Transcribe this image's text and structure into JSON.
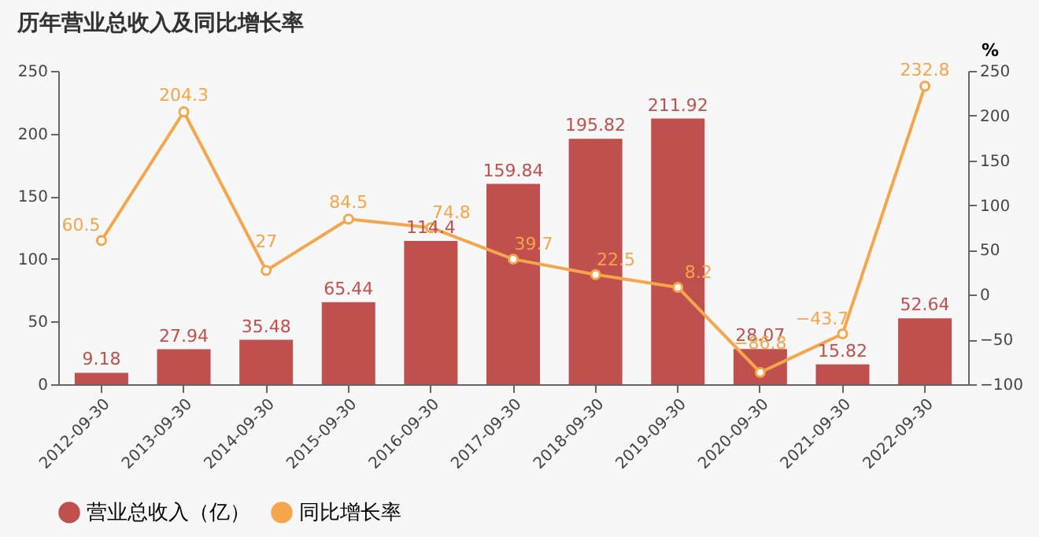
{
  "chart_data": {
    "type": "bar",
    "title": "历年营业总收入及同比增长率",
    "y2label": "%",
    "categories": [
      "2012-09-30",
      "2013-09-30",
      "2014-09-30",
      "2015-09-30",
      "2016-09-30",
      "2017-09-30",
      "2018-09-30",
      "2019-09-30",
      "2020-09-30",
      "2021-09-30",
      "2022-09-30"
    ],
    "series": [
      {
        "name": "营业总收入（亿）",
        "color": "#c0504d",
        "values": [
          9.18,
          27.94,
          35.48,
          65.44,
          114.4,
          159.84,
          195.82,
          211.92,
          28.07,
          15.82,
          52.64
        ]
      },
      {
        "name": "同比增长率",
        "type": "line",
        "axis": "y2",
        "color": "#f5a54a",
        "values": [
          60.5,
          204.3,
          27,
          84.5,
          74.8,
          39.7,
          22.5,
          8.2,
          -86.8,
          -43.7,
          232.8
        ]
      }
    ],
    "ylim": [
      0,
      250
    ],
    "yticks": [
      0,
      50,
      100,
      150,
      200,
      250
    ],
    "y2lim": [
      -100,
      250
    ],
    "y2ticks": [
      -100,
      -50,
      0,
      50,
      100,
      150,
      200,
      250
    ],
    "data_labels": true,
    "legend": "bottom",
    "grid": false,
    "marker": "circle",
    "line_style": "solid"
  }
}
